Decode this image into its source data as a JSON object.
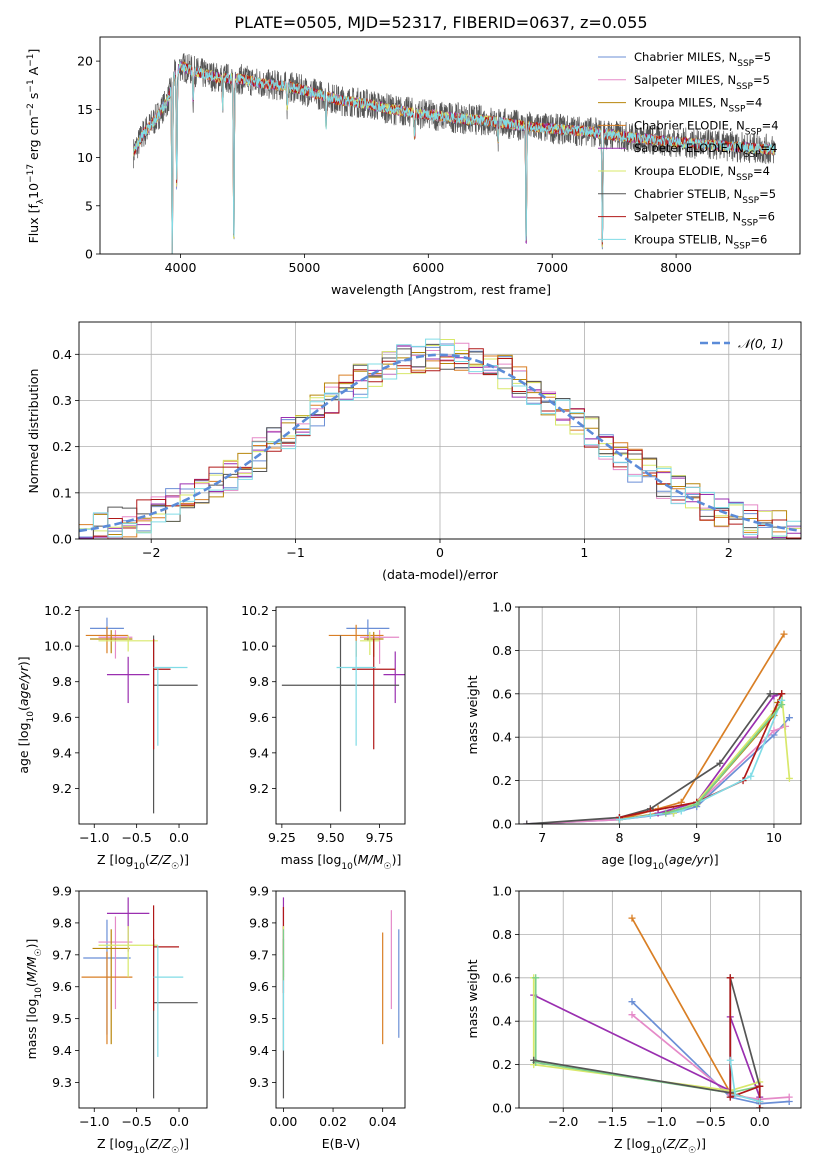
{
  "figure_title": "PLATE=0505, MJD=52317, FIBERID=0637, z=0.055",
  "model_colors": {
    "Chabrier MILES": "#6b8fd6",
    "Salpeter MILES": "#e58ac8",
    "Kroupa MILES": "#b8860b",
    "Chabrier ELODIE": "#d97f25",
    "Salpeter ELODIE": "#9a2fb0",
    "Kroupa ELODIE": "#d8e86a",
    "Chabrier STELIB": "#555555",
    "Salpeter STELIB": "#b01818",
    "Kroupa STELIB": "#80dce6",
    "Chabrier STELIB alt": "#7bd08a"
  },
  "chart_data": [
    {
      "id": "spectrum",
      "type": "line",
      "xlabel": "wavelength [Angstrom, rest frame]",
      "ylabel": "Flux [f_λ10^-17 erg cm^-2 s^-1 A^-1]",
      "xlim": [
        3350,
        9000
      ],
      "ylim": [
        0,
        22.5
      ],
      "xticks": [
        4000,
        5000,
        6000,
        7000,
        8000
      ],
      "yticks": [
        0,
        5,
        10,
        15,
        20
      ],
      "legend_position": "top-right",
      "legend": [
        {
          "label": "Chabrier MILES, N_SSP=5",
          "color": "#6b8fd6"
        },
        {
          "label": "Salpeter MILES, N_SSP=5",
          "color": "#e58ac8"
        },
        {
          "label": "Kroupa MILES, N_SSP=4",
          "color": "#b8860b"
        },
        {
          "label": "Chabrier ELODIE, N_SSP=4",
          "color": "#d97f25"
        },
        {
          "label": "Salpeter ELODIE, N_SSP=4",
          "color": "#9a2fb0"
        },
        {
          "label": "Kroupa ELODIE, N_SSP=4",
          "color": "#d8e86a"
        },
        {
          "label": "Chabrier STELIB, N_SSP=5",
          "color": "#555555"
        },
        {
          "label": "Salpeter STELIB, N_SSP=6",
          "color": "#b01818"
        },
        {
          "label": "Kroupa STELIB, N_SSP=6",
          "color": "#80dce6"
        }
      ],
      "continuum": {
        "x": [
          3620,
          3700,
          3800,
          3900,
          3950,
          4000,
          4100,
          4200,
          4300,
          4500,
          4700,
          4900,
          5100,
          5300,
          5500,
          5700,
          5900,
          6100,
          6300,
          6500,
          6700,
          6900,
          7100,
          7300,
          7500,
          7700,
          7900,
          8100,
          8300,
          8500,
          8700,
          8800
        ],
        "y": [
          10.5,
          12.5,
          14.0,
          16.0,
          18.5,
          19.5,
          19.0,
          18.6,
          18.3,
          18.1,
          17.6,
          17.3,
          16.6,
          15.9,
          15.6,
          15.0,
          14.6,
          14.3,
          14.0,
          13.8,
          13.4,
          13.1,
          12.9,
          12.7,
          12.3,
          12.0,
          11.7,
          11.5,
          11.3,
          11.1,
          10.9,
          10.8
        ]
      },
      "absorption_dips": [
        {
          "x": 3933,
          "depth": 19
        },
        {
          "x": 3969,
          "depth": 12
        },
        {
          "x": 4102,
          "depth": 3
        },
        {
          "x": 4340,
          "depth": 3
        },
        {
          "x": 4430,
          "depth": 18
        },
        {
          "x": 4861,
          "depth": 2
        },
        {
          "x": 5175,
          "depth": 3
        },
        {
          "x": 5890,
          "depth": 2.5
        },
        {
          "x": 6563,
          "depth": 2
        },
        {
          "x": 6790,
          "depth": 13
        },
        {
          "x": 7405,
          "depth": 12
        }
      ]
    },
    {
      "id": "residuals",
      "type": "histogram",
      "xlabel": "(data-model)/error",
      "ylabel": "Normed distribution",
      "xlim": [
        -2.5,
        2.5
      ],
      "ylim": [
        0,
        0.47
      ],
      "xticks": [
        -2,
        -1,
        0,
        1,
        2
      ],
      "yticks": [
        0.0,
        0.1,
        0.2,
        0.3,
        0.4
      ],
      "grid": true,
      "legend_position": "top-right",
      "legend_label": "𝒩(0, 1)",
      "gaussian": {
        "mean": 0,
        "sigma": 1,
        "color": "#5b8bd8"
      },
      "bin_width": 0.1,
      "series_colors": [
        "#6b8fd6",
        "#e58ac8",
        "#b8860b",
        "#d97f25",
        "#9a2fb0",
        "#d8e86a",
        "#555555",
        "#b01818",
        "#80dce6"
      ]
    },
    {
      "id": "age_vs_Z",
      "type": "errorbar",
      "xlabel": "Z [log10(Z/Z☉)]",
      "ylabel": "age [log10(age/yr)]",
      "xlim": [
        -1.18,
        0.33
      ],
      "ylim": [
        9.0,
        10.22
      ],
      "xticks": [
        -1.0,
        -0.5,
        0.0
      ],
      "yticks": [
        9.2,
        9.4,
        9.6,
        9.8,
        10.0,
        10.2
      ],
      "points": [
        {
          "x": -0.85,
          "y": 10.1,
          "xerr": 0.2,
          "yerr_lo": 0.05,
          "yerr_hi": 0.06,
          "color": "#6b8fd6"
        },
        {
          "x": -0.75,
          "y": 10.05,
          "xerr": 0.2,
          "yerr_lo": 0.12,
          "yerr_hi": 0.04,
          "color": "#e58ac8"
        },
        {
          "x": -0.8,
          "y": 10.04,
          "xerr": 0.25,
          "yerr_lo": 0.08,
          "yerr_hi": 0.05,
          "color": "#b8860b"
        },
        {
          "x": -0.85,
          "y": 10.06,
          "xerr": 0.25,
          "yerr_lo": 0.1,
          "yerr_hi": 0.05,
          "color": "#d97f25"
        },
        {
          "x": -0.6,
          "y": 9.84,
          "xerr": 0.25,
          "yerr_lo": 0.16,
          "yerr_hi": 0.1,
          "color": "#9a2fb0"
        },
        {
          "x": -0.6,
          "y": 10.03,
          "xerr": 0.35,
          "yerr_lo": 0.06,
          "yerr_hi": 0.03,
          "color": "#d8e86a"
        },
        {
          "x": -0.3,
          "y": 9.78,
          "xerr_lo": 0.0,
          "xerr_hi": 0.52,
          "yerr_lo": 0.72,
          "yerr_hi": 0.28,
          "color": "#555555"
        },
        {
          "x": -0.3,
          "y": 9.87,
          "xerr_lo": 0.0,
          "xerr_hi": 0.2,
          "yerr_lo": 0.45,
          "yerr_hi": 0.17,
          "color": "#b01818"
        },
        {
          "x": -0.25,
          "y": 9.88,
          "xerr_lo": 0.05,
          "xerr_hi": 0.35,
          "yerr_lo": 0.44,
          "yerr_hi": 0.0,
          "color": "#80dce6"
        }
      ]
    },
    {
      "id": "age_vs_mass",
      "type": "errorbar",
      "xlabel": "mass [log10(M/M☉)]",
      "xlim": [
        9.22,
        9.88
      ],
      "ylim": [
        9.0,
        10.22
      ],
      "xticks": [
        9.25,
        9.5,
        9.75
      ],
      "yticks": [
        9.2,
        9.4,
        9.6,
        9.8,
        10.0,
        10.2
      ],
      "points": [
        {
          "x": 9.69,
          "y": 10.1,
          "xerr": 0.11,
          "yerr_lo": 0.07,
          "yerr_hi": 0.05,
          "color": "#6b8fd6"
        },
        {
          "x": 9.75,
          "y": 10.05,
          "xerr": 0.1,
          "yerr_lo": 0.15,
          "yerr_hi": 0.04,
          "color": "#e58ac8"
        },
        {
          "x": 9.72,
          "y": 10.04,
          "xerr": 0.05,
          "yerr_lo": 0.1,
          "yerr_hi": 0.04,
          "color": "#b8860b"
        },
        {
          "x": 9.63,
          "y": 10.06,
          "xerr": 0.14,
          "yerr_lo": 0.12,
          "yerr_hi": 0.06,
          "color": "#d97f25"
        },
        {
          "x": 9.83,
          "y": 9.84,
          "xerr": 0.06,
          "yerr_lo": 0.16,
          "yerr_hi": 0.13,
          "color": "#9a2fb0"
        },
        {
          "x": 9.7,
          "y": 10.03,
          "xerr": 0.05,
          "yerr_lo": 0.08,
          "yerr_hi": 0.05,
          "color": "#d8e86a"
        },
        {
          "x": 9.55,
          "y": 9.78,
          "xerr": 0.3,
          "yerr_lo": 0.71,
          "yerr_hi": 0.28,
          "color": "#555555"
        },
        {
          "x": 9.72,
          "y": 9.87,
          "xerr": 0.11,
          "yerr_lo": 0.45,
          "yerr_hi": 0.17,
          "color": "#b01818"
        },
        {
          "x": 9.63,
          "y": 9.88,
          "xerr": 0.1,
          "yerr_lo": 0.44,
          "yerr_hi": 0.15,
          "color": "#80dce6"
        }
      ]
    },
    {
      "id": "mass_weight_vs_age",
      "type": "line",
      "xlabel": "age [log10(age/yr)]",
      "ylabel": "mass weight",
      "xlim": [
        6.7,
        10.35
      ],
      "ylim": [
        0,
        1.0
      ],
      "xticks": [
        7,
        8,
        9,
        10
      ],
      "yticks": [
        0.0,
        0.2,
        0.4,
        0.6,
        0.8,
        1.0
      ],
      "grid": true,
      "marker": "+",
      "series": [
        {
          "color": "#d97f25",
          "x": [
            8.0,
            8.5,
            8.8,
            10.13
          ],
          "y": [
            0.02,
            0.07,
            0.1,
            0.875
          ]
        },
        {
          "color": "#6b8fd6",
          "x": [
            6.8,
            8.0,
            8.7,
            9.0,
            10.0,
            10.2
          ],
          "y": [
            0.0,
            0.02,
            0.05,
            0.08,
            0.41,
            0.49
          ]
        },
        {
          "color": "#e58ac8",
          "x": [
            6.8,
            8.0,
            8.6,
            9.0,
            10.0,
            10.15
          ],
          "y": [
            0.0,
            0.02,
            0.05,
            0.09,
            0.43,
            0.45
          ]
        },
        {
          "color": "#b8860b",
          "x": [
            8.0,
            8.7,
            9.0,
            10.0,
            10.05
          ],
          "y": [
            0.02,
            0.06,
            0.09,
            0.5,
            0.56
          ]
        },
        {
          "color": "#9a2fb0",
          "x": [
            8.5,
            9.0,
            10.0,
            10.1
          ],
          "y": [
            0.05,
            0.1,
            0.59,
            0.6
          ]
        },
        {
          "color": "#d8e86a",
          "x": [
            8.7,
            9.0,
            10.0,
            10.1,
            10.2
          ],
          "y": [
            0.05,
            0.1,
            0.52,
            0.6,
            0.21
          ]
        },
        {
          "color": "#555555",
          "x": [
            6.8,
            8.0,
            8.4,
            9.3,
            9.95,
            10.1
          ],
          "y": [
            0.0,
            0.03,
            0.07,
            0.28,
            0.6,
            0.6
          ]
        },
        {
          "color": "#b01818",
          "x": [
            8.0,
            8.4,
            9.0,
            9.6,
            10.1
          ],
          "y": [
            0.03,
            0.06,
            0.1,
            0.2,
            0.6
          ]
        },
        {
          "color": "#80dce6",
          "x": [
            8.0,
            8.4,
            8.8,
            9.7,
            10.1
          ],
          "y": [
            0.02,
            0.04,
            0.06,
            0.22,
            0.57
          ]
        },
        {
          "color": "#7bd08a",
          "x": [
            8.6,
            9.0,
            10.1
          ],
          "y": [
            0.05,
            0.09,
            0.55
          ]
        }
      ]
    },
    {
      "id": "mass_vs_Z",
      "type": "errorbar",
      "xlabel": "Z [log10(Z/Z☉)]",
      "ylabel": "mass [log10(M/M☉)]",
      "xlim": [
        -1.18,
        0.33
      ],
      "ylim": [
        9.22,
        9.9
      ],
      "xticks": [
        -1.0,
        -0.5,
        0.0
      ],
      "yticks": [
        9.3,
        9.4,
        9.5,
        9.6,
        9.7,
        9.8,
        9.9
      ],
      "points": [
        {
          "x": -0.85,
          "y": 9.69,
          "xerr": 0.28,
          "yerr_lo": 0.24,
          "yerr_hi": 0.12,
          "color": "#6b8fd6"
        },
        {
          "x": -0.75,
          "y": 9.74,
          "xerr": 0.2,
          "yerr_lo": 0.21,
          "yerr_hi": 0.08,
          "color": "#e58ac8"
        },
        {
          "x": -0.8,
          "y": 9.72,
          "xerr": 0.22,
          "yerr_lo": 0.3,
          "yerr_hi": 0.06,
          "color": "#b8860b"
        },
        {
          "x": -0.85,
          "y": 9.63,
          "xerr": 0.3,
          "yerr_lo": 0.21,
          "yerr_hi": 0.08,
          "color": "#d97f25"
        },
        {
          "x": -0.6,
          "y": 9.83,
          "xerr": 0.25,
          "yerr_lo": 0.12,
          "yerr_hi": 0.05,
          "color": "#9a2fb0"
        },
        {
          "x": -0.6,
          "y": 9.73,
          "xerr": 0.35,
          "yerr_lo": 0.1,
          "yerr_hi": 0.06,
          "color": "#d8e86a"
        },
        {
          "x": -0.3,
          "y": 9.55,
          "xerr_lo": 0.0,
          "xerr_hi": 0.52,
          "yerr_lo": 0.3,
          "yerr_hi": 0.2,
          "color": "#555555"
        },
        {
          "x": -0.3,
          "y": 9.725,
          "xerr_lo": 0.0,
          "xerr_hi": 0.3,
          "yerr_lo": 0.2,
          "yerr_hi": 0.13,
          "color": "#b01818"
        },
        {
          "x": -0.25,
          "y": 9.63,
          "xerr_lo": 0.05,
          "xerr_hi": 0.3,
          "yerr_lo": 0.25,
          "yerr_hi": 0.1,
          "color": "#80dce6"
        }
      ]
    },
    {
      "id": "mass_vs_ebv",
      "type": "errorbar",
      "xlabel": "E(B-V)",
      "xlim": [
        -0.003,
        0.049
      ],
      "ylim": [
        9.22,
        9.9
      ],
      "xticks": [
        0.0,
        0.02,
        0.04
      ],
      "yticks": [
        9.3,
        9.4,
        9.5,
        9.6,
        9.7,
        9.8,
        9.9
      ],
      "points": [
        {
          "x": 0.0,
          "y": 9.55,
          "yerr_lo": 0.3,
          "yerr_hi": 0.2,
          "color": "#555555"
        },
        {
          "x": 0.0,
          "y": 9.73,
          "yerr_lo": 0.1,
          "yerr_hi": 0.15,
          "color": "#9a2fb0"
        },
        {
          "x": 0.0,
          "y": 9.7,
          "yerr_lo": 0.12,
          "yerr_hi": 0.15,
          "color": "#b01818"
        },
        {
          "x": 0.0,
          "y": 9.6,
          "yerr_lo": 0.2,
          "yerr_hi": 0.1,
          "color": "#80dce6"
        },
        {
          "x": 0.0,
          "y": 9.73,
          "yerr_lo": 0.1,
          "yerr_hi": 0.06,
          "color": "#d8e86a"
        },
        {
          "x": 0.0,
          "y": 9.72,
          "yerr_lo": 0.1,
          "yerr_hi": 0.06,
          "color": "#7bd08a"
        },
        {
          "x": 0.04,
          "y": 9.6,
          "yerr_lo": 0.18,
          "yerr_hi": 0.17,
          "color": "#d97f25"
        },
        {
          "x": 0.0435,
          "y": 9.68,
          "yerr_lo": 0.15,
          "yerr_hi": 0.16,
          "color": "#e58ac8"
        },
        {
          "x": 0.0465,
          "y": 9.61,
          "yerr_lo": 0.17,
          "yerr_hi": 0.17,
          "color": "#6b8fd6"
        }
      ]
    },
    {
      "id": "mass_weight_vs_Z",
      "type": "line",
      "xlabel": "Z [log10(Z/Z☉)]",
      "ylabel": "mass weight",
      "xlim": [
        -2.45,
        0.42
      ],
      "ylim": [
        0,
        1.0
      ],
      "xticks": [
        -2.0,
        -1.5,
        -1.0,
        -0.5,
        0.0
      ],
      "yticks": [
        0.0,
        0.2,
        0.4,
        0.6,
        0.8,
        1.0
      ],
      "grid": true,
      "marker": "+",
      "series": [
        {
          "color": "#d97f25",
          "x": [
            -1.3,
            -0.3,
            0.0
          ],
          "y": [
            0.875,
            0.07,
            0.03
          ]
        },
        {
          "color": "#6b8fd6",
          "x": [
            -1.3,
            -0.3,
            0.0,
            0.3
          ],
          "y": [
            0.49,
            0.05,
            0.02,
            0.03
          ]
        },
        {
          "color": "#e58ac8",
          "x": [
            -1.3,
            -0.3,
            0.0,
            0.3
          ],
          "y": [
            0.43,
            0.06,
            0.04,
            0.05
          ]
        },
        {
          "color": "#9a2fb0",
          "x": [
            -2.3,
            -0.3,
            -0.3,
            0.0
          ],
          "y": [
            0.52,
            0.08,
            0.42,
            0.05
          ]
        },
        {
          "color": "#d8e86a",
          "x": [
            -2.3,
            -2.3,
            -0.3,
            0.0
          ],
          "y": [
            0.6,
            0.2,
            0.08,
            0.12
          ]
        },
        {
          "color": "#7bd08a",
          "x": [
            -2.28,
            -2.28,
            -0.3,
            0.0
          ],
          "y": [
            0.6,
            0.21,
            0.07,
            0.1
          ]
        },
        {
          "color": "#555555",
          "x": [
            -2.3,
            -0.3,
            -0.3,
            0.0,
            0.0
          ],
          "y": [
            0.22,
            0.07,
            0.6,
            0.1,
            0.0
          ]
        },
        {
          "color": "#b01818",
          "x": [
            -0.3,
            -0.3,
            0.0,
            0.0
          ],
          "y": [
            0.6,
            0.05,
            0.1,
            0.0
          ]
        },
        {
          "color": "#80dce6",
          "x": [
            -0.3,
            -0.25,
            0.0
          ],
          "y": [
            0.22,
            0.06,
            0.03
          ]
        }
      ]
    }
  ]
}
